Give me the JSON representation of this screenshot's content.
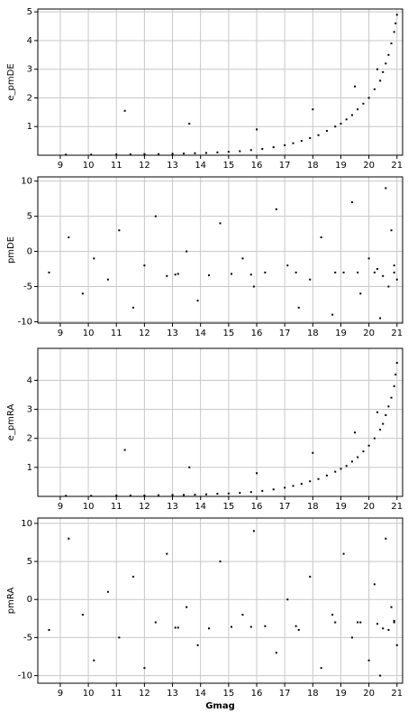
{
  "chart_data": [
    {
      "type": "scatter",
      "ylabel": "e_pmDE",
      "color": "#000000",
      "grid": true,
      "xlim": [
        8.2,
        21.2
      ],
      "xticks": [
        9,
        10,
        11,
        12,
        13,
        14,
        15,
        16,
        17,
        18,
        19,
        20,
        21
      ],
      "ylim": [
        0,
        5.1
      ],
      "yticks": [
        1,
        2,
        3,
        4,
        5
      ],
      "x": [
        9.2,
        10.1,
        11.0,
        11.5,
        12.0,
        12.5,
        13.0,
        13.4,
        13.8,
        14.2,
        14.6,
        15.0,
        15.4,
        15.8,
        16.2,
        16.6,
        17.0,
        17.3,
        17.6,
        17.9,
        18.2,
        18.5,
        18.8,
        19.0,
        19.2,
        19.4,
        19.6,
        19.8,
        20.0,
        20.2,
        20.4,
        20.5,
        20.6,
        20.7,
        20.8,
        20.9,
        20.95,
        21.0,
        11.3,
        13.6,
        16.0,
        18.0,
        19.5,
        20.3
      ],
      "values": [
        0.02,
        0.02,
        0.03,
        0.03,
        0.04,
        0.04,
        0.05,
        0.06,
        0.07,
        0.08,
        0.1,
        0.12,
        0.14,
        0.18,
        0.22,
        0.28,
        0.35,
        0.42,
        0.5,
        0.6,
        0.7,
        0.85,
        1.0,
        1.1,
        1.25,
        1.4,
        1.6,
        1.8,
        2.0,
        2.3,
        2.6,
        2.9,
        3.2,
        3.5,
        3.9,
        4.3,
        4.6,
        4.9,
        1.55,
        1.1,
        0.9,
        1.6,
        2.4,
        3.0
      ]
    },
    {
      "type": "scatter",
      "ylabel": "pmDE",
      "color": "#000000",
      "grid": true,
      "xlim": [
        8.2,
        21.2
      ],
      "xticks": [
        9,
        10,
        11,
        12,
        13,
        14,
        15,
        16,
        17,
        18,
        19,
        20,
        21
      ],
      "ylim": [
        -10.2,
        10.6
      ],
      "yticks": [
        -10,
        -5,
        0,
        5,
        10
      ],
      "x": [
        8.6,
        9.3,
        9.8,
        10.2,
        10.7,
        11.1,
        11.6,
        12.0,
        12.4,
        12.8,
        13.1,
        13.5,
        13.9,
        14.3,
        14.7,
        15.1,
        15.5,
        15.9,
        16.3,
        16.7,
        17.1,
        17.5,
        17.9,
        18.3,
        18.7,
        19.1,
        19.4,
        19.7,
        20.0,
        20.2,
        20.4,
        20.6,
        20.7,
        20.8,
        20.9,
        21.0,
        13.2,
        15.8,
        17.4,
        18.8,
        19.6,
        20.3,
        20.5,
        20.9
      ],
      "values": [
        -3,
        2,
        -6,
        -1,
        -4,
        3,
        -8,
        -2,
        5,
        -3.5,
        -3.3,
        0,
        -7,
        -3.4,
        4,
        -3.2,
        -1,
        -5,
        -3,
        6,
        -2,
        -8,
        -4,
        2,
        -9,
        -3,
        7,
        -6,
        -1,
        -3,
        -9.5,
        9,
        -5,
        3,
        -2,
        -4,
        -3.2,
        -3.3,
        -3,
        -3,
        -3,
        -2.5,
        -3.5,
        -3
      ]
    },
    {
      "type": "scatter",
      "ylabel": "e_pmRA",
      "color": "#000000",
      "grid": true,
      "xlim": [
        8.2,
        21.2
      ],
      "xticks": [
        9,
        10,
        11,
        12,
        13,
        14,
        15,
        16,
        17,
        18,
        19,
        20,
        21
      ],
      "ylim": [
        0,
        5.1
      ],
      "yticks": [
        1,
        2,
        3,
        4
      ],
      "x": [
        9.2,
        10.1,
        11.0,
        11.5,
        12.0,
        12.5,
        13.0,
        13.4,
        13.8,
        14.2,
        14.6,
        15.0,
        15.4,
        15.8,
        16.2,
        16.6,
        17.0,
        17.3,
        17.6,
        17.9,
        18.2,
        18.5,
        18.8,
        19.0,
        19.2,
        19.4,
        19.6,
        19.8,
        20.0,
        20.2,
        20.4,
        20.5,
        20.6,
        20.7,
        20.8,
        20.9,
        20.95,
        21.0,
        11.3,
        13.6,
        16.0,
        18.0,
        19.5,
        20.3
      ],
      "values": [
        0.02,
        0.02,
        0.03,
        0.03,
        0.03,
        0.04,
        0.05,
        0.05,
        0.06,
        0.07,
        0.09,
        0.1,
        0.12,
        0.15,
        0.19,
        0.24,
        0.3,
        0.36,
        0.43,
        0.52,
        0.6,
        0.72,
        0.85,
        0.95,
        1.05,
        1.2,
        1.35,
        1.55,
        1.75,
        2.0,
        2.3,
        2.5,
        2.8,
        3.1,
        3.4,
        3.8,
        4.2,
        4.6,
        1.6,
        1.0,
        0.8,
        1.5,
        2.2,
        2.9
      ]
    },
    {
      "type": "scatter",
      "ylabel": "pmRA",
      "xlabel": "Gmag",
      "color": "#000000",
      "grid": true,
      "xlim": [
        8.2,
        21.2
      ],
      "xticks": [
        9,
        10,
        11,
        12,
        13,
        14,
        15,
        16,
        17,
        18,
        19,
        20,
        21
      ],
      "ylim": [
        -11,
        10.7
      ],
      "yticks": [
        -10,
        -5,
        0,
        5,
        10
      ],
      "x": [
        8.6,
        9.3,
        9.8,
        10.2,
        10.7,
        11.1,
        11.6,
        12.0,
        12.4,
        12.8,
        13.1,
        13.5,
        13.9,
        14.3,
        14.7,
        15.1,
        15.5,
        15.9,
        16.3,
        16.7,
        17.1,
        17.5,
        17.9,
        18.3,
        18.7,
        19.1,
        19.4,
        19.7,
        20.0,
        20.2,
        20.4,
        20.6,
        20.7,
        20.8,
        20.9,
        21.0,
        13.2,
        15.8,
        17.4,
        18.8,
        19.6,
        20.3,
        20.5,
        20.9
      ],
      "values": [
        -4,
        8,
        -2,
        -8,
        1,
        -5,
        3,
        -9,
        -3,
        6,
        -3.7,
        -1,
        -6,
        -3.8,
        5,
        -3.6,
        -2,
        9,
        -3.5,
        -7,
        0,
        -4,
        3,
        -9,
        -2,
        6,
        -5,
        -3,
        -8,
        2,
        -10,
        8,
        -4,
        -1,
        -3,
        -6,
        -3.7,
        -3.6,
        -3.5,
        -3,
        -3,
        -3.2,
        -3.8,
        -2.8
      ]
    }
  ]
}
